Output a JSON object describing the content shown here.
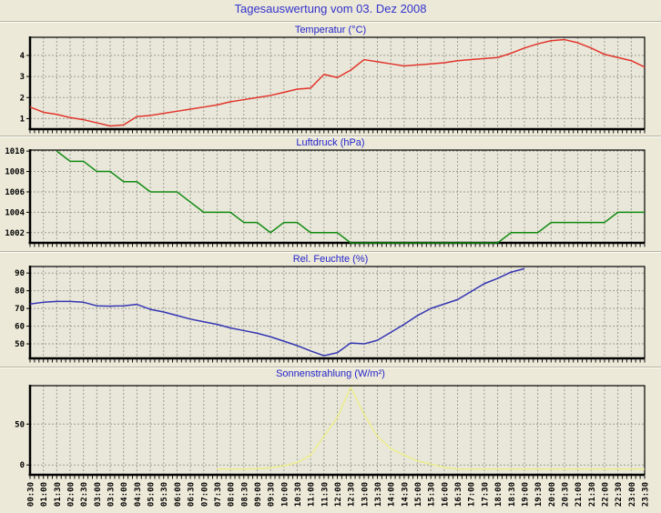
{
  "page": {
    "title": "Tagesauswertung vom 03. Dez 2008"
  },
  "x_axis": {
    "labels": [
      "00:30",
      "01:00",
      "01:30",
      "02:00",
      "02:30",
      "03:00",
      "03:30",
      "04:00",
      "04:30",
      "05:00",
      "05:30",
      "06:00",
      "06:30",
      "07:00",
      "07:30",
      "08:00",
      "08:30",
      "09:00",
      "09:30",
      "10:00",
      "10:30",
      "11:00",
      "11:30",
      "12:00",
      "12:30",
      "13:00",
      "13:30",
      "14:00",
      "14:30",
      "15:00",
      "15:30",
      "16:00",
      "16:30",
      "17:00",
      "17:30",
      "18:00",
      "18:30",
      "19:00",
      "19:30",
      "20:00",
      "20:30",
      "21:00",
      "21:30",
      "22:00",
      "22:30",
      "23:00",
      "23:30"
    ]
  },
  "chart_data": [
    {
      "type": "line",
      "title": "Temperatur (°C)",
      "color": "#e2342b",
      "ymin": 0.5,
      "ymax": 4.86,
      "yticks": [
        1,
        2,
        3,
        4
      ],
      "grid": true,
      "start": 0,
      "values": [
        1.55,
        1.3,
        1.2,
        1.05,
        0.95,
        0.8,
        0.65,
        0.7,
        1.1,
        1.15,
        1.25,
        1.35,
        1.45,
        1.55,
        1.65,
        1.8,
        1.9,
        2.0,
        2.1,
        2.25,
        2.4,
        2.45,
        3.1,
        2.95,
        3.3,
        3.8,
        3.7,
        3.6,
        3.5,
        3.55,
        3.6,
        3.65,
        3.75,
        3.8,
        3.85,
        3.9,
        4.1,
        4.35,
        4.55,
        4.7,
        4.75,
        4.6,
        4.35,
        4.05,
        3.9,
        3.75,
        3.45
      ]
    },
    {
      "type": "line",
      "title": "Luftdruck (hPa)",
      "color": "#108a10",
      "ymin": 1001,
      "ymax": 1010.1,
      "yticks": [
        1002,
        1004,
        1006,
        1008,
        1010
      ],
      "grid": true,
      "start": 2,
      "values": [
        1010,
        1009,
        1009,
        1008,
        1008,
        1007,
        1007,
        1006,
        1006,
        1006,
        1005,
        1004,
        1004,
        1004,
        1003,
        1003,
        1002,
        1003,
        1003,
        1002,
        1002,
        1002,
        1001,
        1001,
        1001,
        1001,
        1001,
        1001,
        1001,
        1001,
        1001,
        1001,
        1001,
        1001,
        1002,
        1002,
        1002,
        1003,
        1003,
        1003,
        1003,
        1003,
        1004,
        1004,
        1004
      ]
    },
    {
      "type": "line",
      "title": "Rel. Feuchte (%)",
      "color": "#3434b4",
      "ymin": 41.8,
      "ymax": 93.7,
      "yticks": [
        50,
        60,
        70,
        80,
        90
      ],
      "grid": true,
      "start": 0,
      "values": [
        72.5,
        73.5,
        74,
        74,
        73.5,
        71.5,
        71.3,
        71.5,
        72.3,
        69.5,
        68,
        66,
        64,
        62.5,
        61,
        59,
        57.5,
        56,
        54,
        51.5,
        49,
        46,
        43.3,
        45,
        50.5,
        50,
        52,
        56.5,
        61,
        66,
        70,
        72.5,
        75,
        79.5,
        84,
        87,
        90.5,
        92.5
      ]
    },
    {
      "type": "line",
      "title": "Sonnenstrahlung (W/m²)",
      "color": "#eded8e",
      "ymin": -12,
      "ymax": 97,
      "yticks": [
        0,
        50
      ],
      "grid": true,
      "start": 14,
      "values": [
        -5,
        -5,
        -5,
        -4.5,
        -3.5,
        -1,
        3,
        12,
        35,
        58,
        95,
        62,
        35,
        20,
        12,
        5,
        1,
        -3,
        -5,
        -5,
        -5,
        -5,
        -5,
        -5,
        -5,
        -5,
        -5,
        -5,
        -5,
        -5,
        -5,
        -5,
        -5
      ]
    }
  ]
}
